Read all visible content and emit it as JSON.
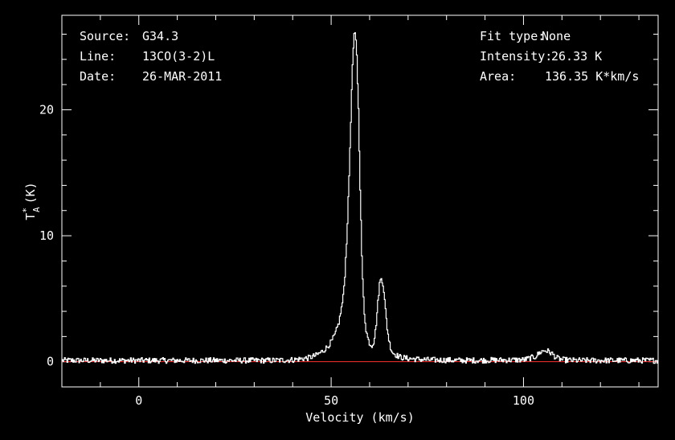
{
  "header": {
    "left": [
      {
        "label": "Source:",
        "value": "G34.3"
      },
      {
        "label": "Line:",
        "value": "13CO(3-2)L"
      },
      {
        "label": "Date:",
        "value": "26-MAR-2011"
      }
    ],
    "right": [
      {
        "label": "Fit type:",
        "value": "None"
      },
      {
        "label": "Intensity:",
        "value": "26.33 K"
      },
      {
        "label": "Area:",
        "value": "136.35 K*km/s"
      }
    ]
  },
  "chart_data": {
    "type": "line",
    "title": "",
    "xlabel": "Velocity (km/s)",
    "ylabel_main": "T",
    "ylabel_sup": "*",
    "ylabel_sub": "A",
    "ylabel_units": "(K)",
    "xlim": [
      -20,
      135
    ],
    "ylim": [
      -2,
      27.5
    ],
    "xticks": [
      0,
      50,
      100
    ],
    "yticks": [
      0,
      10,
      20
    ],
    "baseline_y": 0,
    "colors": {
      "spectrum": "#ffffff",
      "baseline": "#ff3030",
      "frame": "#ffffff",
      "background": "#000000"
    },
    "series": [
      {
        "x": [
          -20,
          0,
          20,
          35,
          40,
          44,
          46,
          47,
          48,
          49,
          50,
          51,
          52,
          53,
          53.5,
          54,
          54.5,
          55,
          55.5,
          56,
          56.5,
          57,
          57.5,
          58,
          58.5,
          59,
          59.5,
          60,
          60.5,
          61,
          61.5,
          62,
          62.5,
          63,
          63.5,
          64,
          64.5,
          65,
          65.5,
          66,
          67,
          68,
          70,
          75,
          85,
          100,
          103,
          104.5,
          105.5,
          106.5,
          107.5,
          108.5,
          110,
          113,
          120,
          135
        ],
        "y": [
          0.1,
          0.1,
          0.1,
          0.1,
          0.15,
          0.3,
          0.5,
          0.7,
          0.9,
          1.2,
          1.6,
          2.2,
          3.2,
          5.0,
          7.0,
          10.0,
          14.0,
          19.0,
          24.0,
          26.3,
          25.0,
          20.0,
          13.0,
          7.0,
          4.0,
          2.5,
          1.8,
          1.4,
          1.3,
          1.6,
          2.6,
          4.5,
          6.2,
          6.7,
          6.0,
          4.2,
          2.6,
          1.6,
          1.0,
          0.7,
          0.5,
          0.35,
          0.25,
          0.15,
          0.1,
          0.15,
          0.4,
          0.8,
          0.9,
          0.8,
          0.6,
          0.3,
          0.15,
          0.1,
          0.1,
          0.1
        ]
      }
    ]
  }
}
